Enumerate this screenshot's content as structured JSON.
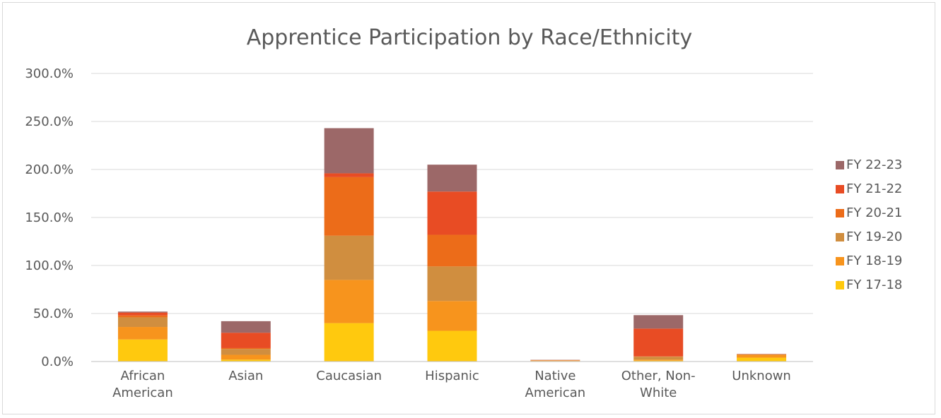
{
  "chart_data": {
    "type": "bar",
    "stacked": true,
    "title": "Apprentice Participation by Race/Ethnicity",
    "xlabel": "",
    "ylabel": "",
    "ylim": [
      0,
      300
    ],
    "y_ticks": [
      "0.0%",
      "50.0%",
      "100.0%",
      "150.0%",
      "200.0%",
      "250.0%",
      "300.0%"
    ],
    "grid": true,
    "legend_position": "right",
    "categories": [
      [
        "African",
        "American"
      ],
      [
        "Asian"
      ],
      [
        "Caucasian"
      ],
      [
        "Hispanic"
      ],
      [
        "Native",
        "American"
      ],
      [
        "Other, Non-",
        "White"
      ],
      [
        "Unknown"
      ]
    ],
    "series": [
      {
        "name": "FY 17-18",
        "color": "#ffc90e",
        "values": [
          23,
          2,
          40,
          32,
          0.5,
          1,
          4
        ]
      },
      {
        "name": "FY 18-19",
        "color": "#f7941d",
        "values": [
          13,
          5,
          45,
          31,
          0.5,
          1,
          3
        ]
      },
      {
        "name": "FY 19-20",
        "color": "#d08e3f",
        "values": [
          10,
          6,
          46,
          36,
          0.2,
          3,
          0.3
        ]
      },
      {
        "name": "FY 20-21",
        "color": "#ec6c19",
        "values": [
          2,
          1,
          61,
          33,
          0.2,
          0.3,
          0.2
        ]
      },
      {
        "name": "FY 21-22",
        "color": "#e84c24",
        "values": [
          3,
          16,
          4,
          45,
          0.2,
          29,
          0.2
        ]
      },
      {
        "name": "FY 22-23",
        "color": "#9c6868",
        "values": [
          1,
          12,
          47,
          28,
          0.2,
          14,
          0.2
        ]
      }
    ]
  }
}
